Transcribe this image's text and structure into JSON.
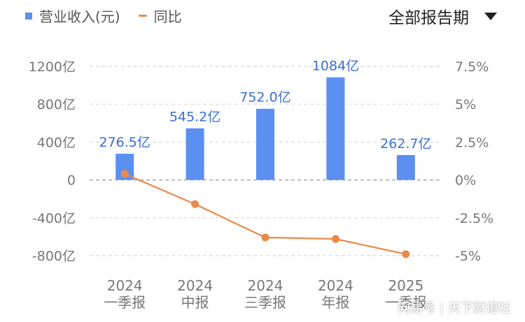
{
  "legend": {
    "revenue_label": "营业收入(元)",
    "yoy_label": "同比"
  },
  "period_selector": {
    "label": "全部报告期"
  },
  "watermark": {
    "text": "网易号",
    "source": "天下财道社"
  },
  "colors": {
    "bar": "#5b8ff0",
    "line": "#e8894a",
    "axis_text": "#777777",
    "label_text": "#3a6fd8",
    "grid": "#d8d8d8"
  },
  "chart_data": {
    "type": "bar+line",
    "categories": [
      [
        "2024",
        "一季报"
      ],
      [
        "2024",
        "中报"
      ],
      [
        "2024",
        "三季报"
      ],
      [
        "2024",
        "年报"
      ],
      [
        "2025",
        "一季报"
      ]
    ],
    "series": [
      {
        "name": "营业收入(元)",
        "type": "bar",
        "axis": "left",
        "values": [
          276.5,
          545.2,
          752.0,
          1084,
          262.7
        ],
        "labels": [
          "276.5亿",
          "545.2亿",
          "752.0亿",
          "1084亿",
          "262.7亿"
        ]
      },
      {
        "name": "同比",
        "type": "line",
        "axis": "right",
        "values": [
          0.4,
          -1.6,
          -3.8,
          -3.9,
          -4.9
        ]
      }
    ],
    "y_left": {
      "ticks": [
        1200,
        800,
        400,
        0,
        -400,
        -800
      ],
      "tick_labels": [
        "1200亿",
        "800亿",
        "400亿",
        "0",
        "-400亿",
        "-800亿"
      ],
      "range": [
        -800,
        1200
      ]
    },
    "y_right": {
      "ticks": [
        7.5,
        5,
        2.5,
        0,
        -2.5,
        -5
      ],
      "tick_labels": [
        "7.5%",
        "5%",
        "2.5%",
        "0%",
        "-2.5%",
        "-5%"
      ],
      "range": [
        -5,
        7.5
      ]
    },
    "grid": true,
    "legend_position": "top-left"
  }
}
